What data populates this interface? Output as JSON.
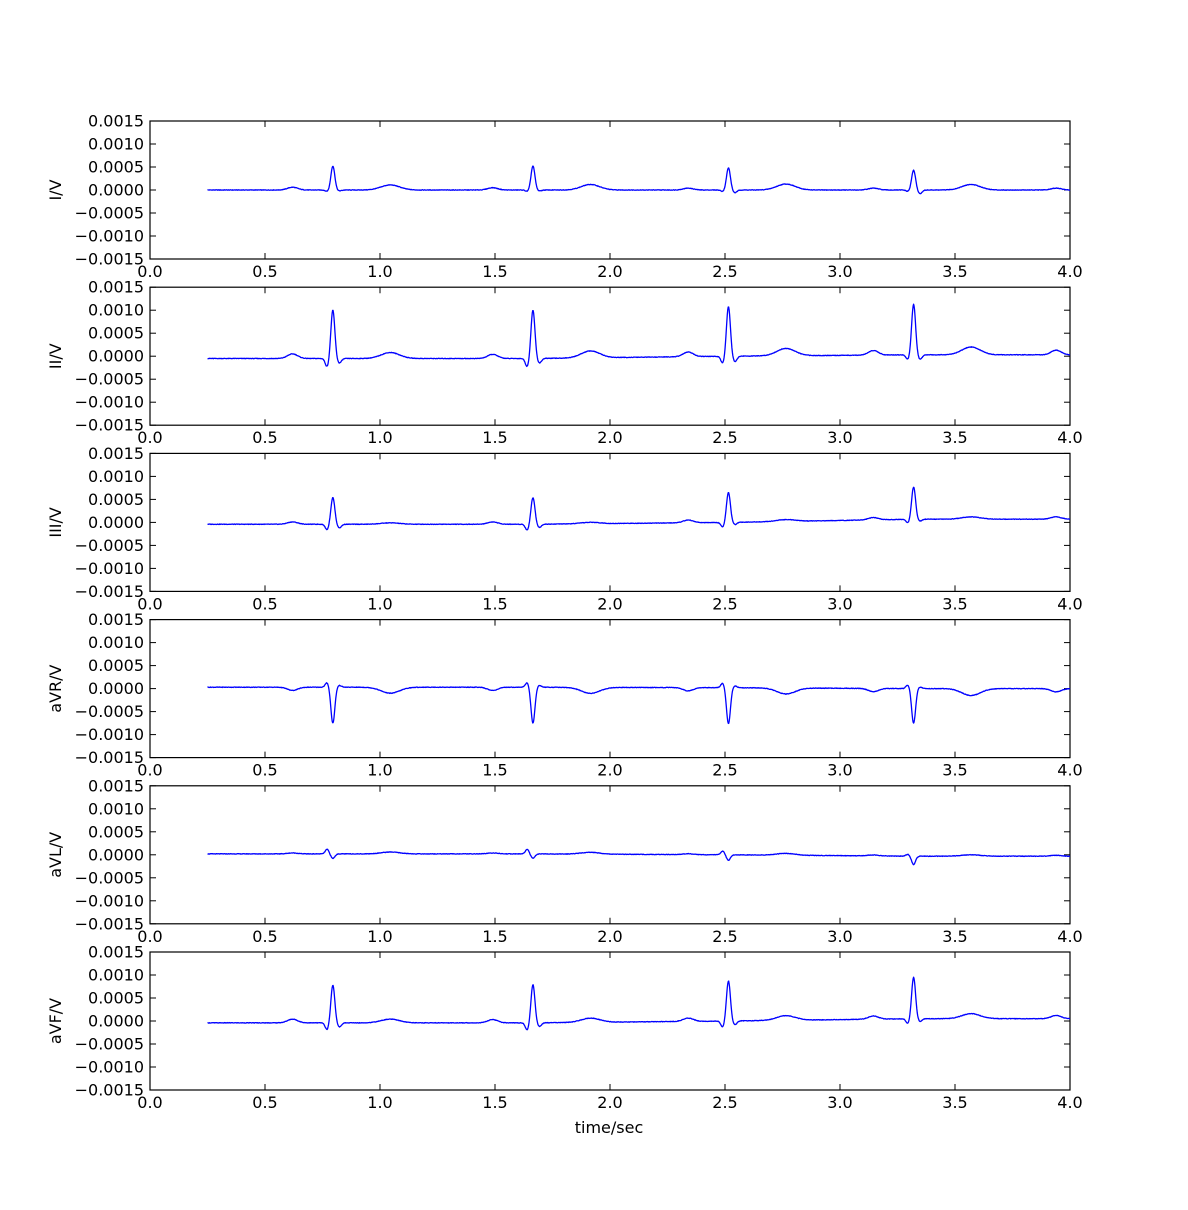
{
  "chart_data": {
    "type": "line",
    "xlabel": "time/sec",
    "xlim": [
      0.0,
      4.0
    ],
    "xticks": [
      "0.0",
      "0.5",
      "1.0",
      "1.5",
      "2.0",
      "2.5",
      "3.0",
      "3.5",
      "4.0"
    ],
    "xtick_values": [
      0.0,
      0.5,
      1.0,
      1.5,
      2.0,
      2.5,
      3.0,
      3.5,
      4.0
    ],
    "ylim": [
      -0.0015,
      0.0015
    ],
    "yticks": [
      "0.0015",
      "0.0010",
      "0.0005",
      "0.0000",
      "−0.0005",
      "−0.0010",
      "−0.0015"
    ],
    "ytick_values": [
      0.0015,
      0.001,
      0.0005,
      0.0,
      -0.0005,
      -0.001,
      -0.0015
    ],
    "grid": false,
    "line_color": "#0000ff",
    "t_start": 0.25,
    "t_end": 4.0,
    "panels": [
      {
        "ylabel": "I/V",
        "qrs_times": [
          0.795,
          1.665,
          2.515,
          3.32
        ],
        "r_peak": [
          0.00052,
          0.00052,
          0.00048,
          0.00043
        ],
        "q_depth": [
          3e-05,
          3e-05,
          3e-05,
          3e-05
        ],
        "s_depth": [
          2e-05,
          2e-05,
          6e-05,
          8e-05
        ],
        "p_wave": [
          6e-05,
          5e-05,
          4e-05,
          4e-05
        ],
        "t_wave": [
          0.00011,
          0.00012,
          0.00013,
          0.00012
        ],
        "baseline": [
          0.0,
          0.0,
          0.0,
          0.0
        ]
      },
      {
        "ylabel": "II/V",
        "qrs_times": [
          0.795,
          1.665,
          2.515,
          3.32
        ],
        "r_peak": [
          0.00105,
          0.00105,
          0.00108,
          0.0011
        ],
        "q_depth": [
          0.00018,
          0.00018,
          0.00015,
          0.0001
        ],
        "s_depth": [
          0.0001,
          0.0001,
          0.00012,
          0.0001
        ],
        "p_wave": [
          0.0001,
          9e-05,
          0.0001,
          0.0001
        ],
        "t_wave": [
          0.00013,
          0.00015,
          0.00016,
          0.00017
        ],
        "baseline": [
          -5e-05,
          -5e-05,
          0.0,
          3e-05
        ]
      },
      {
        "ylabel": "III/V",
        "qrs_times": [
          0.795,
          1.665,
          2.515,
          3.32
        ],
        "r_peak": [
          0.00058,
          0.00058,
          0.00065,
          0.0007
        ],
        "q_depth": [
          0.00012,
          0.00013,
          0.0001,
          8e-05
        ],
        "s_depth": [
          8e-05,
          7e-05,
          5e-05,
          4e-05
        ],
        "p_wave": [
          5e-05,
          5e-05,
          6e-05,
          5e-05
        ],
        "t_wave": [
          3e-05,
          3e-05,
          4e-05,
          5e-05
        ],
        "baseline": [
          -4e-05,
          -4e-05,
          0.0,
          7e-05
        ]
      },
      {
        "ylabel": "aVR/V",
        "qrs_times": [
          0.795,
          1.665,
          2.515,
          3.32
        ],
        "r_peak": [
          -0.00078,
          -0.00078,
          -0.00078,
          -0.00075
        ],
        "q_depth": [
          -0.0001,
          -0.0001,
          -0.0001,
          -8e-05
        ],
        "s_depth": [
          -4e-05,
          -4e-05,
          -4e-05,
          -3e-05
        ],
        "p_wave": [
          -7e-05,
          -7e-05,
          -7e-05,
          -7e-05
        ],
        "t_wave": [
          -0.00013,
          -0.00013,
          -0.00013,
          -0.00015
        ],
        "baseline": [
          3e-05,
          3e-05,
          2e-05,
          0.0
        ]
      },
      {
        "ylabel": "aVL/V",
        "qrs_times": [
          0.795,
          1.665,
          2.515,
          3.32
        ],
        "r_peak": [
          -0.0001,
          -0.0001,
          -0.00012,
          -0.00018
        ],
        "q_depth": [
          -0.0001,
          -0.0001,
          -8e-05,
          -4e-05
        ],
        "s_depth": [
          0.0,
          0.0,
          0.0,
          0.0
        ],
        "p_wave": [
          2e-05,
          2e-05,
          2e-05,
          2e-05
        ],
        "t_wave": [
          4e-05,
          4e-05,
          4e-05,
          3e-05
        ],
        "baseline": [
          2e-05,
          2e-05,
          0.0,
          -3e-05
        ]
      },
      {
        "ylabel": "aVF/V",
        "qrs_times": [
          0.795,
          1.665,
          2.515,
          3.32
        ],
        "r_peak": [
          0.00082,
          0.00083,
          0.00087,
          0.0009
        ],
        "q_depth": [
          0.00015,
          0.00016,
          0.00013,
          0.0001
        ],
        "s_depth": [
          9e-05,
          8e-05,
          8e-05,
          6e-05
        ],
        "p_wave": [
          8e-05,
          7e-05,
          7e-05,
          7e-05
        ],
        "t_wave": [
          8e-05,
          9e-05,
          0.0001,
          0.00011
        ],
        "baseline": [
          -4e-05,
          -4e-05,
          0.0,
          5e-05
        ]
      }
    ]
  }
}
